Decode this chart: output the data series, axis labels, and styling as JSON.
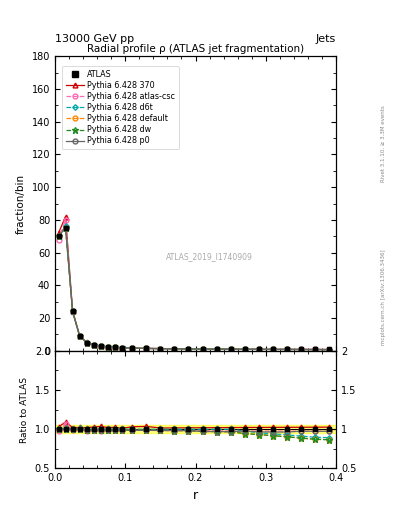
{
  "title_top": "13000 GeV pp",
  "title_right": "Jets",
  "plot_title": "Radial profile ρ (ATLAS jet fragmentation)",
  "watermark": "ATLAS_2019_I1740909",
  "ylabel_main": "fraction/bin",
  "ylabel_ratio": "Ratio to ATLAS",
  "xlabel": "r",
  "right_label_top": "Rivet 3.1.10, ≥ 3.3M events",
  "right_label_bottom": "mcplots.cern.ch [arXiv:1306.3436]",
  "ylim_main": [
    0,
    180
  ],
  "ylim_ratio": [
    0.5,
    2.0
  ],
  "yticks_main": [
    0,
    20,
    40,
    60,
    80,
    100,
    120,
    140,
    160,
    180
  ],
  "yticks_ratio": [
    0.5,
    1.0,
    1.5,
    2.0
  ],
  "xlim": [
    0,
    0.4
  ],
  "xticks": [
    0.0,
    0.1,
    0.2,
    0.3,
    0.4
  ],
  "r_values": [
    0.005,
    0.015,
    0.025,
    0.035,
    0.045,
    0.055,
    0.065,
    0.075,
    0.085,
    0.095,
    0.11,
    0.13,
    0.15,
    0.17,
    0.19,
    0.21,
    0.23,
    0.25,
    0.27,
    0.29,
    0.31,
    0.33,
    0.35,
    0.37,
    0.39
  ],
  "ATLAS_values": [
    70,
    75,
    24,
    9,
    5,
    3.5,
    2.8,
    2.3,
    2.0,
    1.8,
    1.6,
    1.4,
    1.3,
    1.2,
    1.1,
    1.05,
    1.0,
    0.95,
    0.9,
    0.88,
    0.85,
    0.83,
    0.8,
    0.78,
    0.75
  ],
  "pythia_370_values": [
    72,
    82,
    24.5,
    9.2,
    5.1,
    3.6,
    2.9,
    2.35,
    2.05,
    1.82,
    1.65,
    1.45,
    1.32,
    1.22,
    1.12,
    1.07,
    1.02,
    0.97,
    0.92,
    0.9,
    0.87,
    0.85,
    0.82,
    0.8,
    0.77
  ],
  "pythia_atlas_csc_values": [
    68,
    80,
    23.8,
    9.0,
    4.9,
    3.45,
    2.75,
    2.28,
    1.98,
    1.78,
    1.58,
    1.38,
    1.28,
    1.18,
    1.08,
    1.03,
    0.98,
    0.93,
    0.88,
    0.86,
    0.83,
    0.81,
    0.78,
    0.76,
    0.73
  ],
  "pythia_d6t_values": [
    70,
    76,
    24,
    9.1,
    5.0,
    3.5,
    2.8,
    2.3,
    2.0,
    1.8,
    1.6,
    1.4,
    1.3,
    1.2,
    1.1,
    1.05,
    1.0,
    0.95,
    0.88,
    0.84,
    0.8,
    0.77,
    0.73,
    0.7,
    0.67
  ],
  "pythia_default_values": [
    70,
    75,
    24,
    9.0,
    4.95,
    3.48,
    2.78,
    2.28,
    1.98,
    1.78,
    1.58,
    1.38,
    1.28,
    1.18,
    1.08,
    1.02,
    0.97,
    0.92,
    0.85,
    0.82,
    0.78,
    0.75,
    0.71,
    0.68,
    0.65
  ],
  "pythia_dw_values": [
    70,
    75,
    24,
    9.0,
    4.95,
    3.48,
    2.78,
    2.28,
    1.98,
    1.78,
    1.58,
    1.38,
    1.28,
    1.18,
    1.08,
    1.02,
    0.97,
    0.92,
    0.85,
    0.82,
    0.78,
    0.75,
    0.71,
    0.68,
    0.65
  ],
  "pythia_p0_values": [
    70,
    75,
    24,
    9.0,
    4.95,
    3.48,
    2.78,
    2.28,
    1.98,
    1.78,
    1.58,
    1.38,
    1.28,
    1.18,
    1.08,
    1.02,
    0.97,
    0.92,
    0.88,
    0.85,
    0.82,
    0.8,
    0.78,
    0.76,
    0.73
  ],
  "ATLAS_color": "#000000",
  "pythia_370_color": "#cc0000",
  "pythia_atlas_csc_color": "#ff69b4",
  "pythia_d6t_color": "#00aaaa",
  "pythia_default_color": "#ff8800",
  "pythia_dw_color": "#228b22",
  "pythia_p0_color": "#666666",
  "band_color": "#ffff00",
  "band_alpha": 0.5
}
